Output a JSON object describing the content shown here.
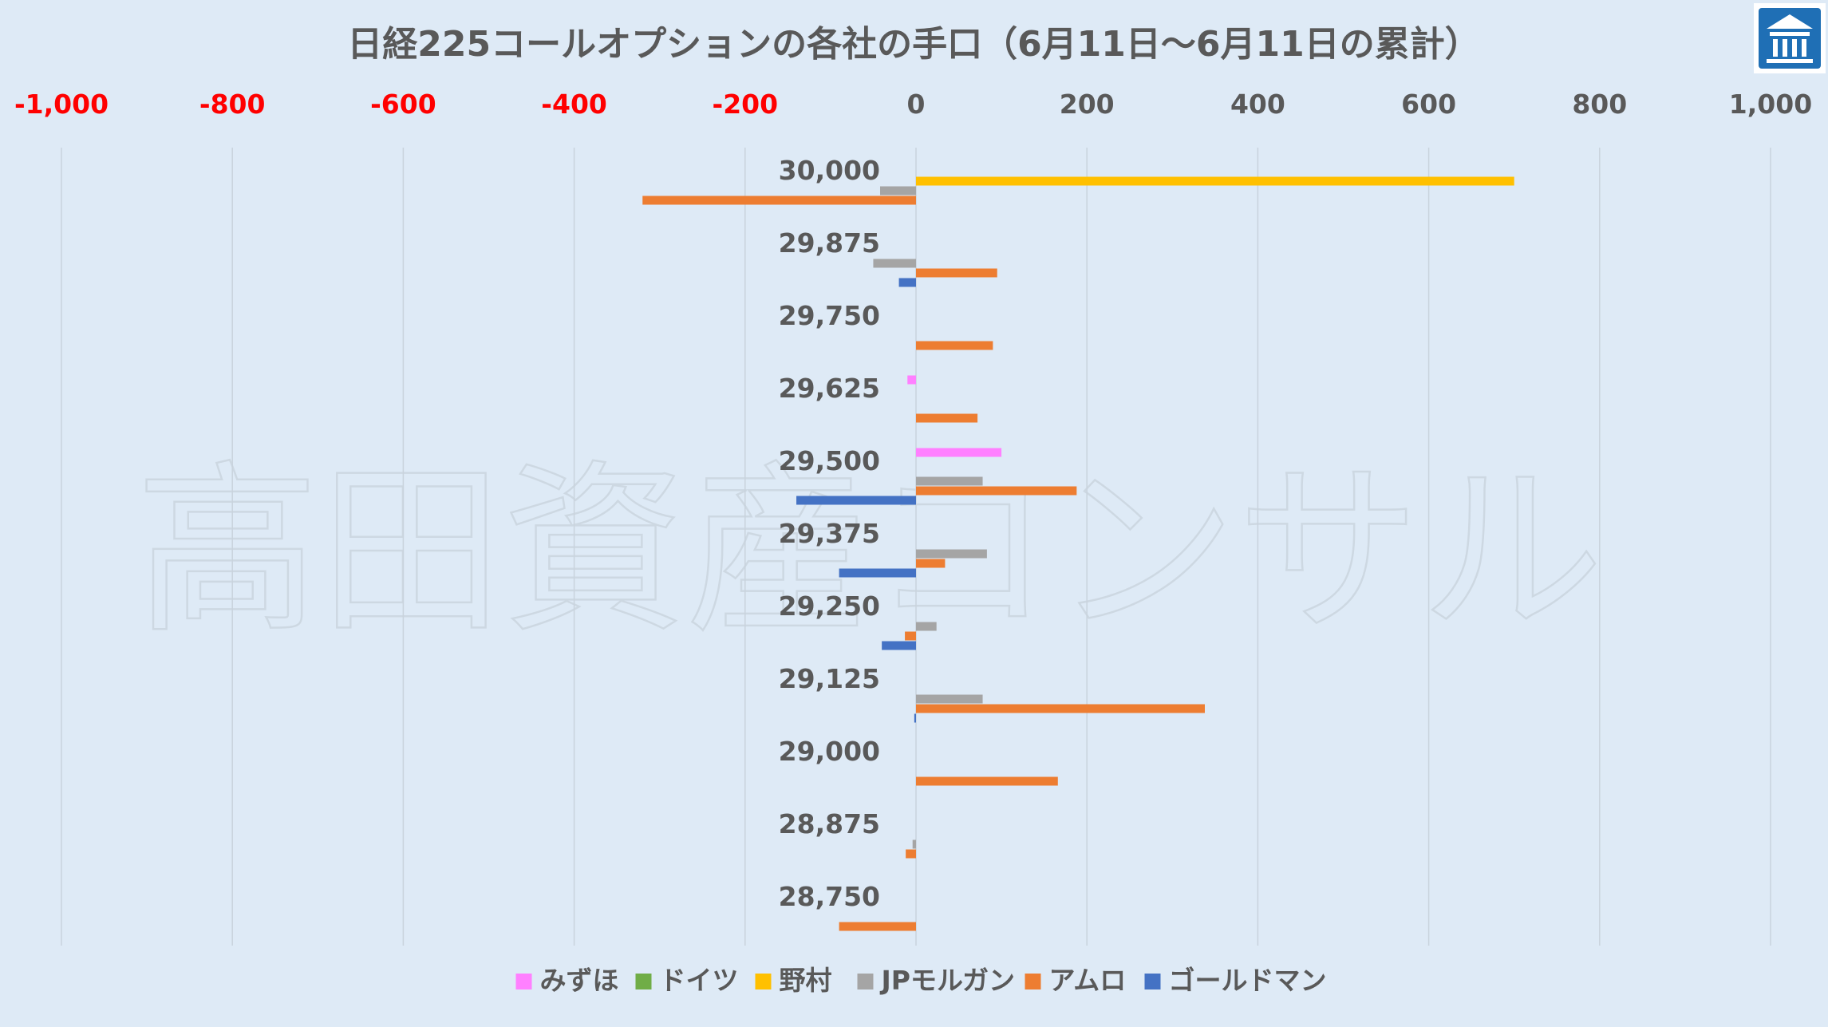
{
  "chart_data": {
    "type": "bar",
    "orientation": "horizontal",
    "title": "日経225コールオプションの各社の手口（6月11日～6月11日の累計）",
    "xlim": [
      -1000,
      1000
    ],
    "xticks": [
      {
        "value": -1000,
        "label": "-1,000"
      },
      {
        "value": -800,
        "label": "-800"
      },
      {
        "value": -600,
        "label": "-600"
      },
      {
        "value": -400,
        "label": "-400"
      },
      {
        "value": -200,
        "label": "-200"
      },
      {
        "value": 0,
        "label": "0"
      },
      {
        "value": 200,
        "label": "200"
      },
      {
        "value": 400,
        "label": "400"
      },
      {
        "value": 600,
        "label": "600"
      },
      {
        "value": 800,
        "label": "800"
      },
      {
        "value": 1000,
        "label": "1,000"
      }
    ],
    "categories": [
      "30,000",
      "29,875",
      "29,750",
      "29,625",
      "29,500",
      "29,375",
      "29,250",
      "29,125",
      "29,000",
      "28,875",
      "28,750"
    ],
    "series": [
      {
        "name": "みずほ",
        "color": "#ff80ff",
        "values": [
          0,
          0,
          0,
          -10,
          100,
          0,
          0,
          0,
          0,
          0,
          0
        ]
      },
      {
        "name": "ドイツ",
        "color": "#70ad47",
        "values": [
          0,
          0,
          0,
          0,
          0,
          0,
          0,
          0,
          0,
          0,
          0
        ]
      },
      {
        "name": "野村",
        "color": "#ffc000",
        "values": [
          700,
          0,
          0,
          0,
          0,
          0,
          0,
          0,
          0,
          0,
          0
        ]
      },
      {
        "name": "JPモルガン",
        "color": "#a5a5a5",
        "values": [
          -42,
          -50,
          0,
          0,
          78,
          83,
          24,
          78,
          0,
          -4,
          0
        ]
      },
      {
        "name": "アムロ",
        "color": "#ed7d31",
        "values": [
          -320,
          95,
          90,
          72,
          188,
          34,
          -13,
          338,
          166,
          -12,
          -90
        ]
      },
      {
        "name": "ゴールドマン",
        "color": "#4472c4",
        "values": [
          0,
          -20,
          0,
          0,
          -140,
          -90,
          -40,
          -2,
          0,
          0,
          0
        ]
      }
    ],
    "negative_tick_color": "#ff0000",
    "positive_tick_color": "#595959",
    "grid": "vertical",
    "legend": "bottom",
    "watermark": "高田資産コンサル"
  },
  "logo": {
    "name": "building-logo",
    "bg": "#1f6fb5"
  }
}
